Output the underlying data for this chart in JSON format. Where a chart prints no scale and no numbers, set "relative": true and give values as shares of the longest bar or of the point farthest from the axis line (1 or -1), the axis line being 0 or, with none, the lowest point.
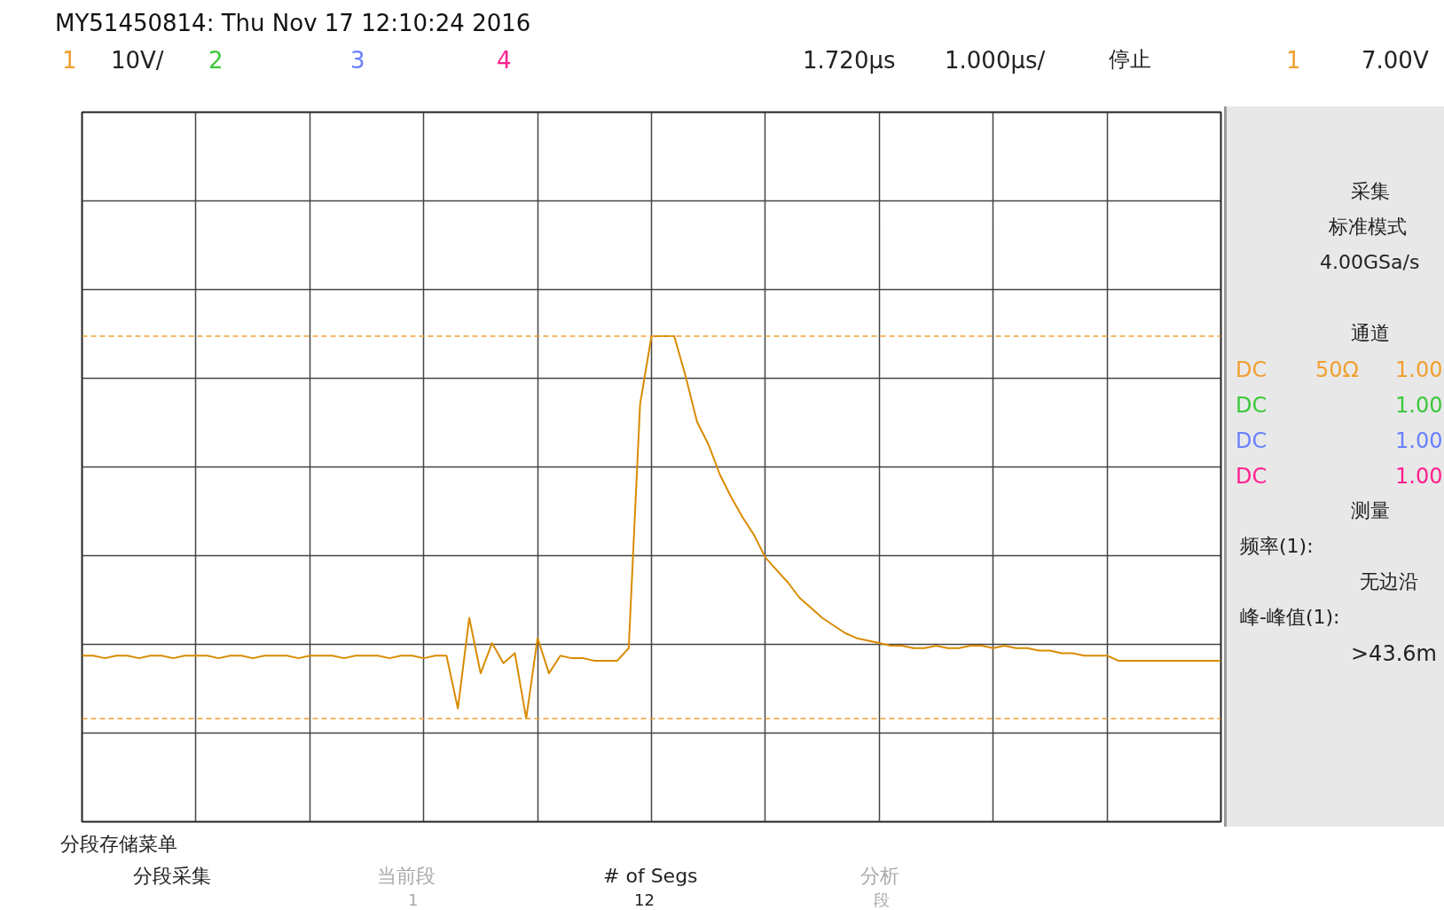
{
  "chart_data": {
    "type": "line",
    "relative": true,
    "title": "MY51450814: Thu Nov 17 12:10:24 2016",
    "categories": [
      null,
      null,
      null,
      null,
      null,
      null,
      null,
      null,
      null,
      null,
      null,
      null,
      null,
      null,
      null,
      null,
      null,
      null,
      null,
      null,
      null,
      null,
      null,
      null,
      null,
      null,
      null,
      null,
      null,
      null,
      null,
      null,
      null,
      null,
      null,
      null,
      null,
      null,
      null,
      null,
      null,
      null,
      null,
      null,
      null,
      null,
      null,
      null,
      null,
      null,
      null,
      null,
      null,
      null,
      null,
      null,
      null,
      null,
      null,
      null,
      null,
      null,
      null,
      null,
      null,
      null,
      null,
      null,
      null,
      null,
      null,
      null,
      null,
      null,
      null,
      null,
      null,
      null,
      null,
      null,
      null,
      null,
      null,
      null,
      null,
      null,
      null,
      null,
      null,
      null,
      null,
      null,
      null,
      null,
      null,
      null,
      null,
      null,
      null,
      null,
      null
    ],
    "series": [
      {
        "color": "#d98b00",
        "values": [
          -0.75,
          -0.75,
          -0.76,
          -0.75,
          -0.75,
          -0.76,
          -0.75,
          -0.75,
          -0.76,
          -0.75,
          -0.75,
          -0.75,
          -0.76,
          -0.75,
          -0.75,
          -0.76,
          -0.75,
          -0.75,
          -0.75,
          -0.76,
          -0.75,
          -0.75,
          -0.75,
          -0.76,
          -0.75,
          -0.75,
          -0.75,
          -0.76,
          -0.75,
          -0.75,
          -0.76,
          -0.75,
          -0.75,
          -0.96,
          -0.6,
          -0.82,
          -0.7,
          -0.78,
          -0.74,
          -1.0,
          -0.68,
          -0.82,
          -0.75,
          -0.76,
          -0.76,
          -0.77,
          -0.77,
          -0.77,
          -0.72,
          0.25,
          0.52,
          0.52,
          0.52,
          0.36,
          0.18,
          0.09,
          -0.03,
          -0.12,
          -0.2,
          -0.27,
          -0.36,
          -0.41,
          -0.46,
          -0.52,
          -0.56,
          -0.6,
          -0.63,
          -0.66,
          -0.68,
          -0.69,
          -0.7,
          -0.71,
          -0.71,
          -0.72,
          -0.72,
          -0.71,
          -0.72,
          -0.72,
          -0.71,
          -0.71,
          -0.72,
          -0.71,
          -0.72,
          -0.72,
          -0.73,
          -0.73,
          -0.74,
          -0.74,
          -0.75,
          -0.75,
          -0.75,
          -0.77,
          -0.77,
          -0.77,
          -0.77,
          -0.77,
          -0.77,
          -0.77,
          -0.77,
          -0.77,
          -0.77
        ]
      }
    ],
    "ref_lines": [
      {
        "axis": "y",
        "value": 0.52,
        "color": "#f0a030",
        "line_style": "dashed"
      },
      {
        "axis": "y",
        "value": -1.0,
        "color": "#f0a030",
        "line_style": "dashed"
      }
    ],
    "grid": true,
    "marker": "none",
    "line_style": "solid",
    "annotations": [
      "1",
      "10V/",
      "2",
      "3",
      "4",
      "1.720µs",
      "1.000µs/",
      "停止",
      "1",
      "7.00V",
      "采集",
      "标准模式",
      "4.00GSa/s",
      "通道",
      "DC",
      "50Ω",
      "1.00",
      "DC",
      "1.00",
      "DC",
      "1.00",
      "DC",
      "1.00",
      "测量",
      "频率(1):",
      "无边沿",
      "峰-峰值(1):",
      ">43.6m",
      "分段存储菜单",
      "分段采集",
      "当前段",
      "1",
      "# of Segs",
      "12",
      "分析",
      "段"
    ]
  }
}
